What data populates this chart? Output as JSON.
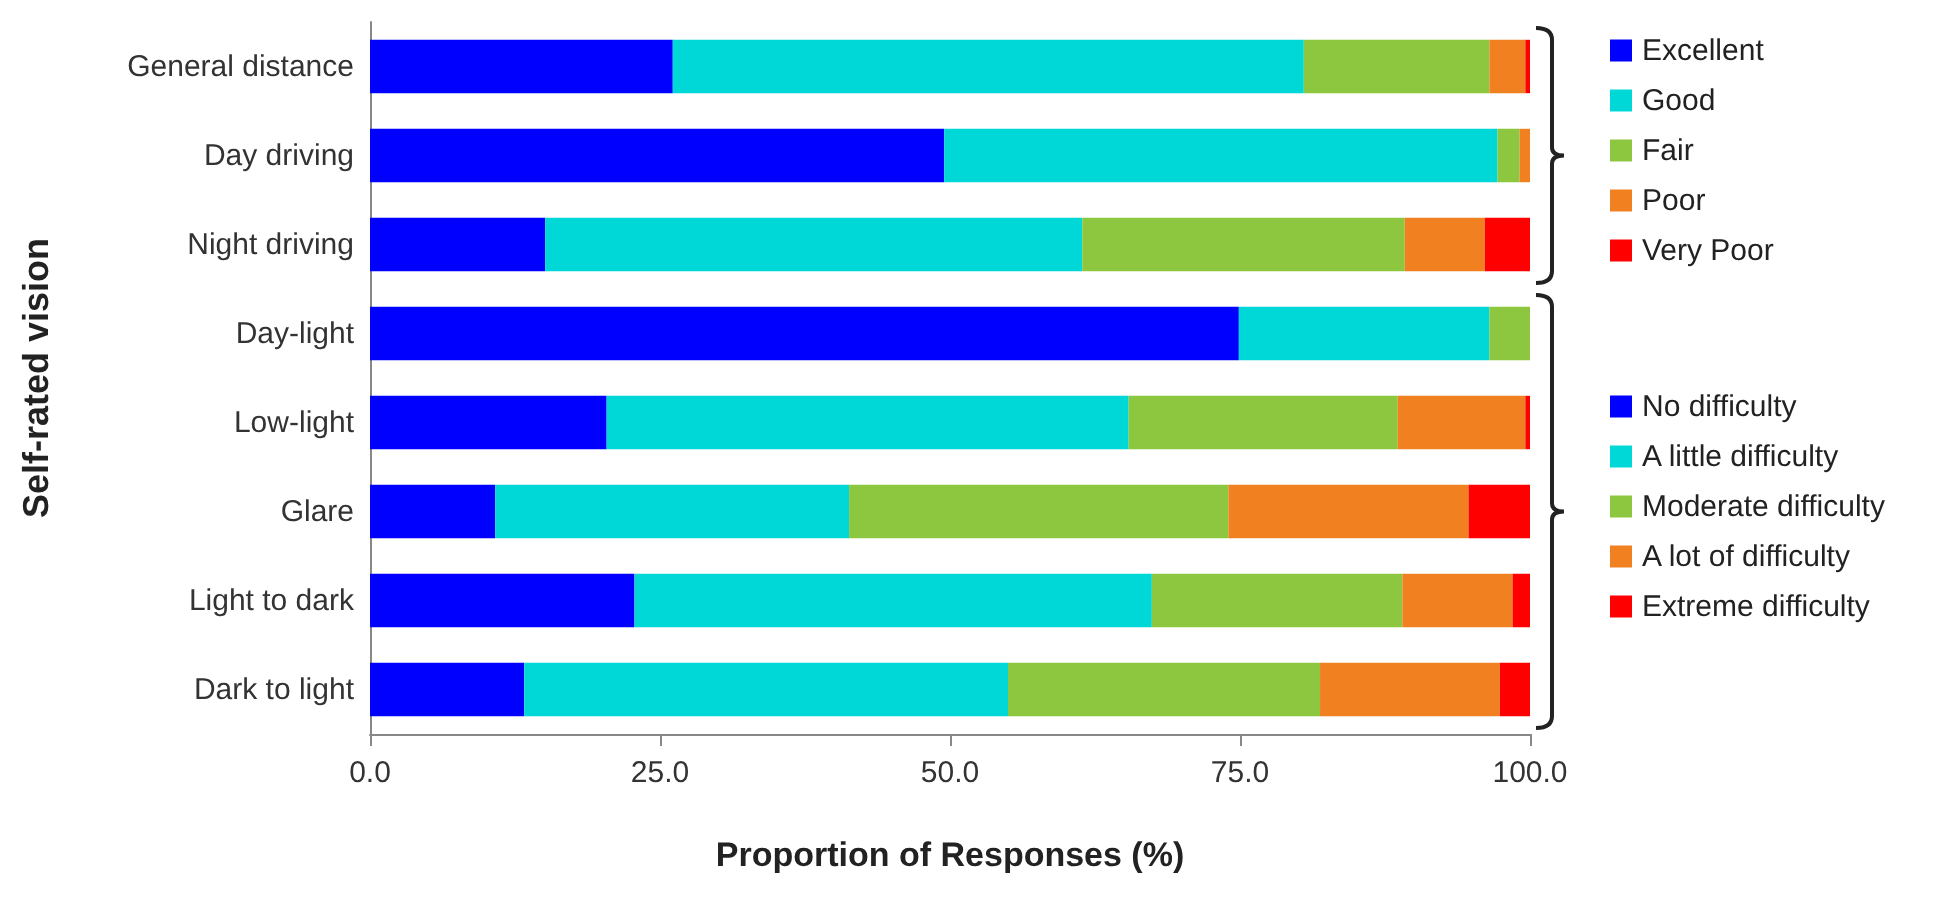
{
  "chart_data": {
    "type": "bar",
    "orientation": "horizontal",
    "stacked": true,
    "xlabel": "Proportion of Responses (%)",
    "ylabel": "Self-rated vision",
    "categories": [
      "General distance",
      "Day driving",
      "Night driving",
      "Day-light",
      "Low-light",
      "Glare",
      "Light to dark",
      "Dark to light"
    ],
    "series": [
      {
        "name": "Excellent",
        "color": "#0000ff",
        "values": [
          26.1,
          49.5,
          15.1,
          null,
          null,
          null,
          null,
          null
        ]
      },
      {
        "name": "Good",
        "color": "#00d8d8",
        "values": [
          54.4,
          47.7,
          46.3,
          null,
          null,
          null,
          null,
          null
        ]
      },
      {
        "name": "Fair",
        "color": "#8dc63f",
        "values": [
          16.0,
          1.9,
          27.8,
          null,
          null,
          null,
          null,
          null
        ]
      },
      {
        "name": "Poor",
        "color": "#f08020",
        "values": [
          3.1,
          0.9,
          6.9,
          null,
          null,
          null,
          null,
          null
        ]
      },
      {
        "name": "Very Poor",
        "color": "#ff0000",
        "values": [
          0.4,
          null,
          3.9,
          null,
          null,
          null,
          null,
          null
        ]
      },
      {
        "name": "No difficulty",
        "color": "#0000ff",
        "values": [
          null,
          null,
          null,
          74.9,
          20.4,
          10.8,
          22.8,
          13.3
        ]
      },
      {
        "name": "A little difficulty",
        "color": "#00d8d8",
        "values": [
          null,
          null,
          null,
          21.6,
          45.0,
          30.5,
          44.6,
          41.7
        ]
      },
      {
        "name": "Moderate difficulty",
        "color": "#8dc63f",
        "values": [
          null,
          null,
          null,
          3.5,
          23.2,
          32.7,
          21.6,
          26.9
        ]
      },
      {
        "name": "A lot of difficulty",
        "color": "#f08020",
        "values": [
          null,
          null,
          null,
          null,
          11.0,
          20.7,
          9.5,
          15.5
        ]
      },
      {
        "name": "Extreme difficulty",
        "color": "#ff0000",
        "values": [
          null,
          null,
          null,
          null,
          0.4,
          5.3,
          1.5,
          2.6
        ]
      }
    ],
    "xlim": [
      0,
      100
    ],
    "xticks": [
      {
        "value": 0,
        "label": "0.0"
      },
      {
        "value": 25,
        "label": "25.0"
      },
      {
        "value": 50,
        "label": "50.0"
      },
      {
        "value": 75,
        "label": "75.0"
      },
      {
        "value": 100,
        "label": "100.0"
      }
    ],
    "grid": false,
    "legend": "right"
  }
}
